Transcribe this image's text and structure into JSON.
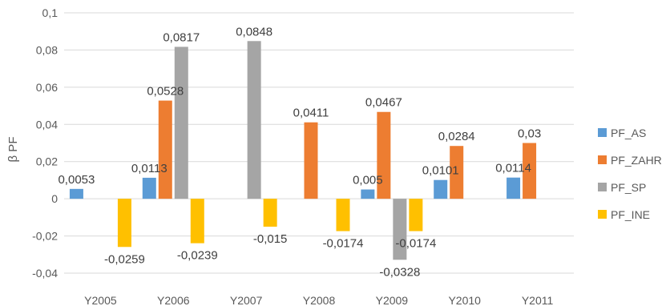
{
  "chart_data": {
    "type": "bar",
    "categories": [
      "Y2005",
      "Y2006",
      "Y2007",
      "Y2008",
      "Y2009",
      "Y2010",
      "Y2011"
    ],
    "series": [
      {
        "name": "PF_AS",
        "color": "#5b9bd5",
        "values": [
          0.0053,
          0.0113,
          null,
          null,
          0.005,
          0.0101,
          0.0114
        ],
        "labels": [
          "0,0053",
          "0,0113",
          "",
          "",
          "0,005",
          "0,0101",
          "0,0114"
        ]
      },
      {
        "name": "PF_ZAHR",
        "color": "#ed7d31",
        "values": [
          null,
          0.0528,
          null,
          0.0411,
          0.0467,
          0.0284,
          0.03
        ],
        "labels": [
          "",
          "0,0528",
          "",
          "0,0411",
          "0,0467",
          "0,0284",
          "0,03"
        ]
      },
      {
        "name": "PF_SP",
        "color": "#a5a5a5",
        "values": [
          null,
          0.0817,
          0.0848,
          null,
          -0.0328,
          null,
          null
        ],
        "labels": [
          "",
          "0,0817",
          "0,0848",
          "",
          "-0,0328",
          "",
          ""
        ]
      },
      {
        "name": "PF_INE",
        "color": "#ffc000",
        "values": [
          -0.0259,
          -0.0239,
          -0.015,
          -0.0174,
          -0.0174,
          null,
          null
        ],
        "labels": [
          "-0,0259",
          "-0,0239",
          "-0,015",
          "-0,0174",
          "-0,0174",
          "",
          ""
        ]
      }
    ],
    "ylabel": "β PF",
    "xlabel": "",
    "ylim": [
      -0.04,
      0.1
    ],
    "yticks": [
      0.1,
      0.08,
      0.06,
      0.04,
      0.02,
      0,
      -0.02,
      -0.04
    ],
    "ytick_labels": [
      "0,1",
      "0,08",
      "0,06",
      "0,04",
      "0,02",
      "0",
      "-0,02",
      "-0,04"
    ],
    "grid": true,
    "legend_position": "right"
  }
}
